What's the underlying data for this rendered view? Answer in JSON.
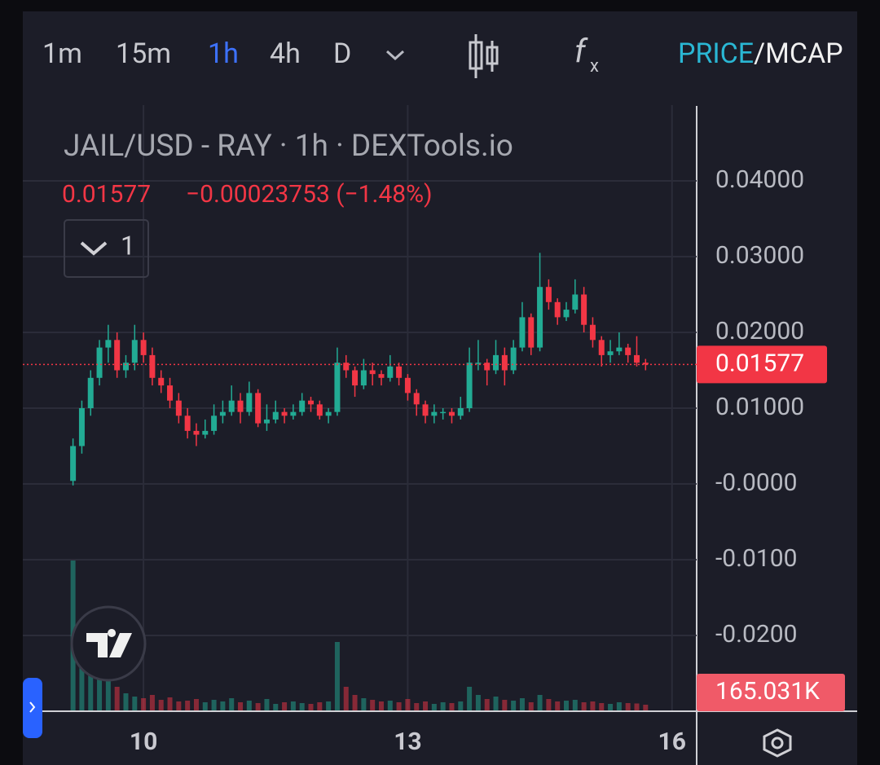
{
  "toolbar": {
    "intervals": [
      "1m",
      "15m",
      "1h",
      "4h",
      "D"
    ],
    "active": "1h",
    "price": "PRICE",
    "slash": "/",
    "mcap": "MCAP"
  },
  "chart_data": {
    "type": "candlestick",
    "title": "JAIL/USD - RAY · 1h · DEXTools.io",
    "last_price": 0.01577,
    "change": "−0.00023753 (−1.48%)",
    "indicator_count": 1,
    "up_color": "#22ab94",
    "down_color": "#f23645",
    "xlim": [
      8.63,
      16.28
    ],
    "xticks": [
      10,
      13,
      16
    ],
    "ylim": [
      -0.03,
      0.05
    ],
    "yticks": [
      {
        "value": 0.04,
        "label": "0.04000"
      },
      {
        "value": 0.03,
        "label": "0.03000"
      },
      {
        "value": 0.02,
        "label": "0.02000"
      },
      {
        "value": 0.01,
        "label": "0.01000"
      },
      {
        "value": 0,
        "label": "-0.0000"
      },
      {
        "value": -0.01,
        "label": "-0.0100"
      },
      {
        "value": -0.02,
        "label": "-0.0200"
      }
    ],
    "grid": true,
    "x": [
      9.2,
      9.3,
      9.4,
      9.5,
      9.6,
      9.7,
      9.8,
      9.9,
      10.0,
      10.1,
      10.2,
      10.3,
      10.4,
      10.5,
      10.6,
      10.7,
      10.8,
      10.9,
      11.0,
      11.1,
      11.2,
      11.3,
      11.4,
      11.5,
      11.6,
      11.7,
      11.8,
      11.9,
      12.0,
      12.1,
      12.2,
      12.3,
      12.4,
      12.5,
      12.6,
      12.7,
      12.8,
      12.9,
      13.0,
      13.1,
      13.2,
      13.3,
      13.4,
      13.5,
      13.6,
      13.7,
      13.8,
      13.9,
      14.0,
      14.1,
      14.2,
      14.3,
      14.4,
      14.5,
      14.6,
      14.7,
      14.8,
      14.9,
      15.0,
      15.1,
      15.2,
      15.3,
      15.4,
      15.5,
      15.6,
      15.7
    ],
    "candles": [
      [
        0.0004,
        0.006,
        -0.0002,
        0.005
      ],
      [
        0.005,
        0.011,
        0.004,
        0.01
      ],
      [
        0.01,
        0.015,
        0.009,
        0.014
      ],
      [
        0.014,
        0.019,
        0.013,
        0.018
      ],
      [
        0.018,
        0.021,
        0.016,
        0.019
      ],
      [
        0.019,
        0.02,
        0.014,
        0.015
      ],
      [
        0.015,
        0.017,
        0.014,
        0.016
      ],
      [
        0.016,
        0.021,
        0.015,
        0.019
      ],
      [
        0.019,
        0.02,
        0.016,
        0.017
      ],
      [
        0.017,
        0.018,
        0.013,
        0.014
      ],
      [
        0.014,
        0.015,
        0.012,
        0.013
      ],
      [
        0.013,
        0.014,
        0.01,
        0.011
      ],
      [
        0.011,
        0.012,
        0.008,
        0.009
      ],
      [
        0.009,
        0.01,
        0.006,
        0.007
      ],
      [
        0.007,
        0.008,
        0.005,
        0.0065
      ],
      [
        0.0065,
        0.0085,
        0.006,
        0.007
      ],
      [
        0.007,
        0.0105,
        0.0065,
        0.009
      ],
      [
        0.009,
        0.011,
        0.008,
        0.0095
      ],
      [
        0.0095,
        0.013,
        0.009,
        0.011
      ],
      [
        0.011,
        0.012,
        0.008,
        0.0095
      ],
      [
        0.0095,
        0.0135,
        0.009,
        0.012
      ],
      [
        0.012,
        0.0125,
        0.0075,
        0.008
      ],
      [
        0.008,
        0.0105,
        0.007,
        0.0085
      ],
      [
        0.0085,
        0.011,
        0.008,
        0.0095
      ],
      [
        0.0095,
        0.01,
        0.008,
        0.009
      ],
      [
        0.009,
        0.0105,
        0.0085,
        0.0095
      ],
      [
        0.0095,
        0.012,
        0.009,
        0.011
      ],
      [
        0.011,
        0.0115,
        0.0095,
        0.0105
      ],
      [
        0.0105,
        0.011,
        0.0085,
        0.009
      ],
      [
        0.009,
        0.01,
        0.008,
        0.0095
      ],
      [
        0.0095,
        0.018,
        0.009,
        0.016
      ],
      [
        0.016,
        0.017,
        0.014,
        0.015
      ],
      [
        0.015,
        0.0155,
        0.0115,
        0.013
      ],
      [
        0.013,
        0.0165,
        0.0125,
        0.015
      ],
      [
        0.015,
        0.016,
        0.013,
        0.0145
      ],
      [
        0.0145,
        0.015,
        0.013,
        0.014
      ],
      [
        0.014,
        0.017,
        0.0135,
        0.0155
      ],
      [
        0.0155,
        0.016,
        0.013,
        0.014
      ],
      [
        0.014,
        0.0145,
        0.011,
        0.012
      ],
      [
        0.012,
        0.0125,
        0.009,
        0.0105
      ],
      [
        0.0105,
        0.011,
        0.008,
        0.009
      ],
      [
        0.009,
        0.0105,
        0.008,
        0.0095
      ],
      [
        0.0095,
        0.01,
        0.0085,
        0.0095
      ],
      [
        0.0095,
        0.01,
        0.008,
        0.009
      ],
      [
        0.009,
        0.0115,
        0.0085,
        0.01
      ],
      [
        0.01,
        0.018,
        0.0095,
        0.016
      ],
      [
        0.016,
        0.019,
        0.015,
        0.016
      ],
      [
        0.016,
        0.0165,
        0.013,
        0.015
      ],
      [
        0.015,
        0.019,
        0.0145,
        0.017
      ],
      [
        0.017,
        0.018,
        0.013,
        0.015
      ],
      [
        0.015,
        0.019,
        0.0145,
        0.018
      ],
      [
        0.018,
        0.024,
        0.0175,
        0.022
      ],
      [
        0.022,
        0.0225,
        0.017,
        0.018
      ],
      [
        0.018,
        0.0305,
        0.0175,
        0.026
      ],
      [
        0.026,
        0.027,
        0.023,
        0.024
      ],
      [
        0.024,
        0.0245,
        0.021,
        0.022
      ],
      [
        0.022,
        0.024,
        0.0215,
        0.023
      ],
      [
        0.023,
        0.027,
        0.0225,
        0.025
      ],
      [
        0.025,
        0.026,
        0.02,
        0.021
      ],
      [
        0.021,
        0.022,
        0.018,
        0.019
      ],
      [
        0.019,
        0.0195,
        0.0155,
        0.017
      ],
      [
        0.017,
        0.019,
        0.016,
        0.0175
      ],
      [
        0.0175,
        0.02,
        0.017,
        0.018
      ],
      [
        0.018,
        0.0185,
        0.016,
        0.017
      ],
      [
        0.017,
        0.0195,
        0.0155,
        0.016
      ],
      [
        0.016,
        0.0165,
        0.015,
        0.01577
      ]
    ],
    "volume": [
      1850000,
      620000,
      480000,
      420000,
      380000,
      300000,
      220000,
      180000,
      160000,
      200000,
      140000,
      170000,
      120000,
      130000,
      150000,
      110000,
      140000,
      120000,
      160000,
      110000,
      130000,
      100000,
      150000,
      90000,
      110000,
      120000,
      100000,
      90000,
      110000,
      120000,
      850000,
      300000,
      200000,
      160000,
      140000,
      120000,
      130000,
      110000,
      150000,
      100000,
      120000,
      90000,
      110000,
      100000,
      120000,
      300000,
      200000,
      150000,
      180000,
      140000,
      130000,
      160000,
      110000,
      200000,
      150000,
      120000,
      130000,
      140000,
      110000,
      120000,
      100000,
      90000,
      110000,
      100000,
      95000,
      80000
    ],
    "volume_lim": [
      0,
      2000000
    ],
    "volume_marker": {
      "value": 165031,
      "label": "165.031K"
    }
  }
}
